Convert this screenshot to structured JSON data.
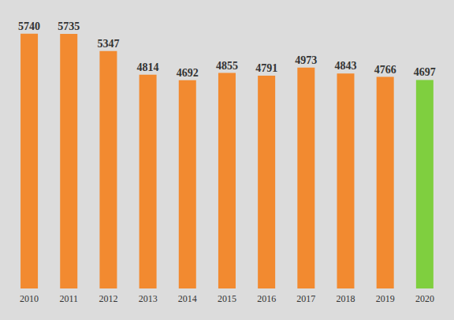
{
  "chart_data": {
    "type": "bar",
    "categories": [
      "2010",
      "2011",
      "2012",
      "2013",
      "2014",
      "2015",
      "2016",
      "2017",
      "2018",
      "2019",
      "2020"
    ],
    "values": [
      5740,
      5735,
      5347,
      4814,
      4692,
      4855,
      4791,
      4973,
      4843,
      4766,
      4697
    ],
    "colors": [
      "#f28a30",
      "#f28a30",
      "#f28a30",
      "#f28a30",
      "#f28a30",
      "#f28a30",
      "#f28a30",
      "#f28a30",
      "#f28a30",
      "#f28a30",
      "#7fcf3f"
    ],
    "ylim": [
      0,
      6000
    ],
    "grid": false,
    "data_labels": true,
    "tick_labels": "x"
  }
}
